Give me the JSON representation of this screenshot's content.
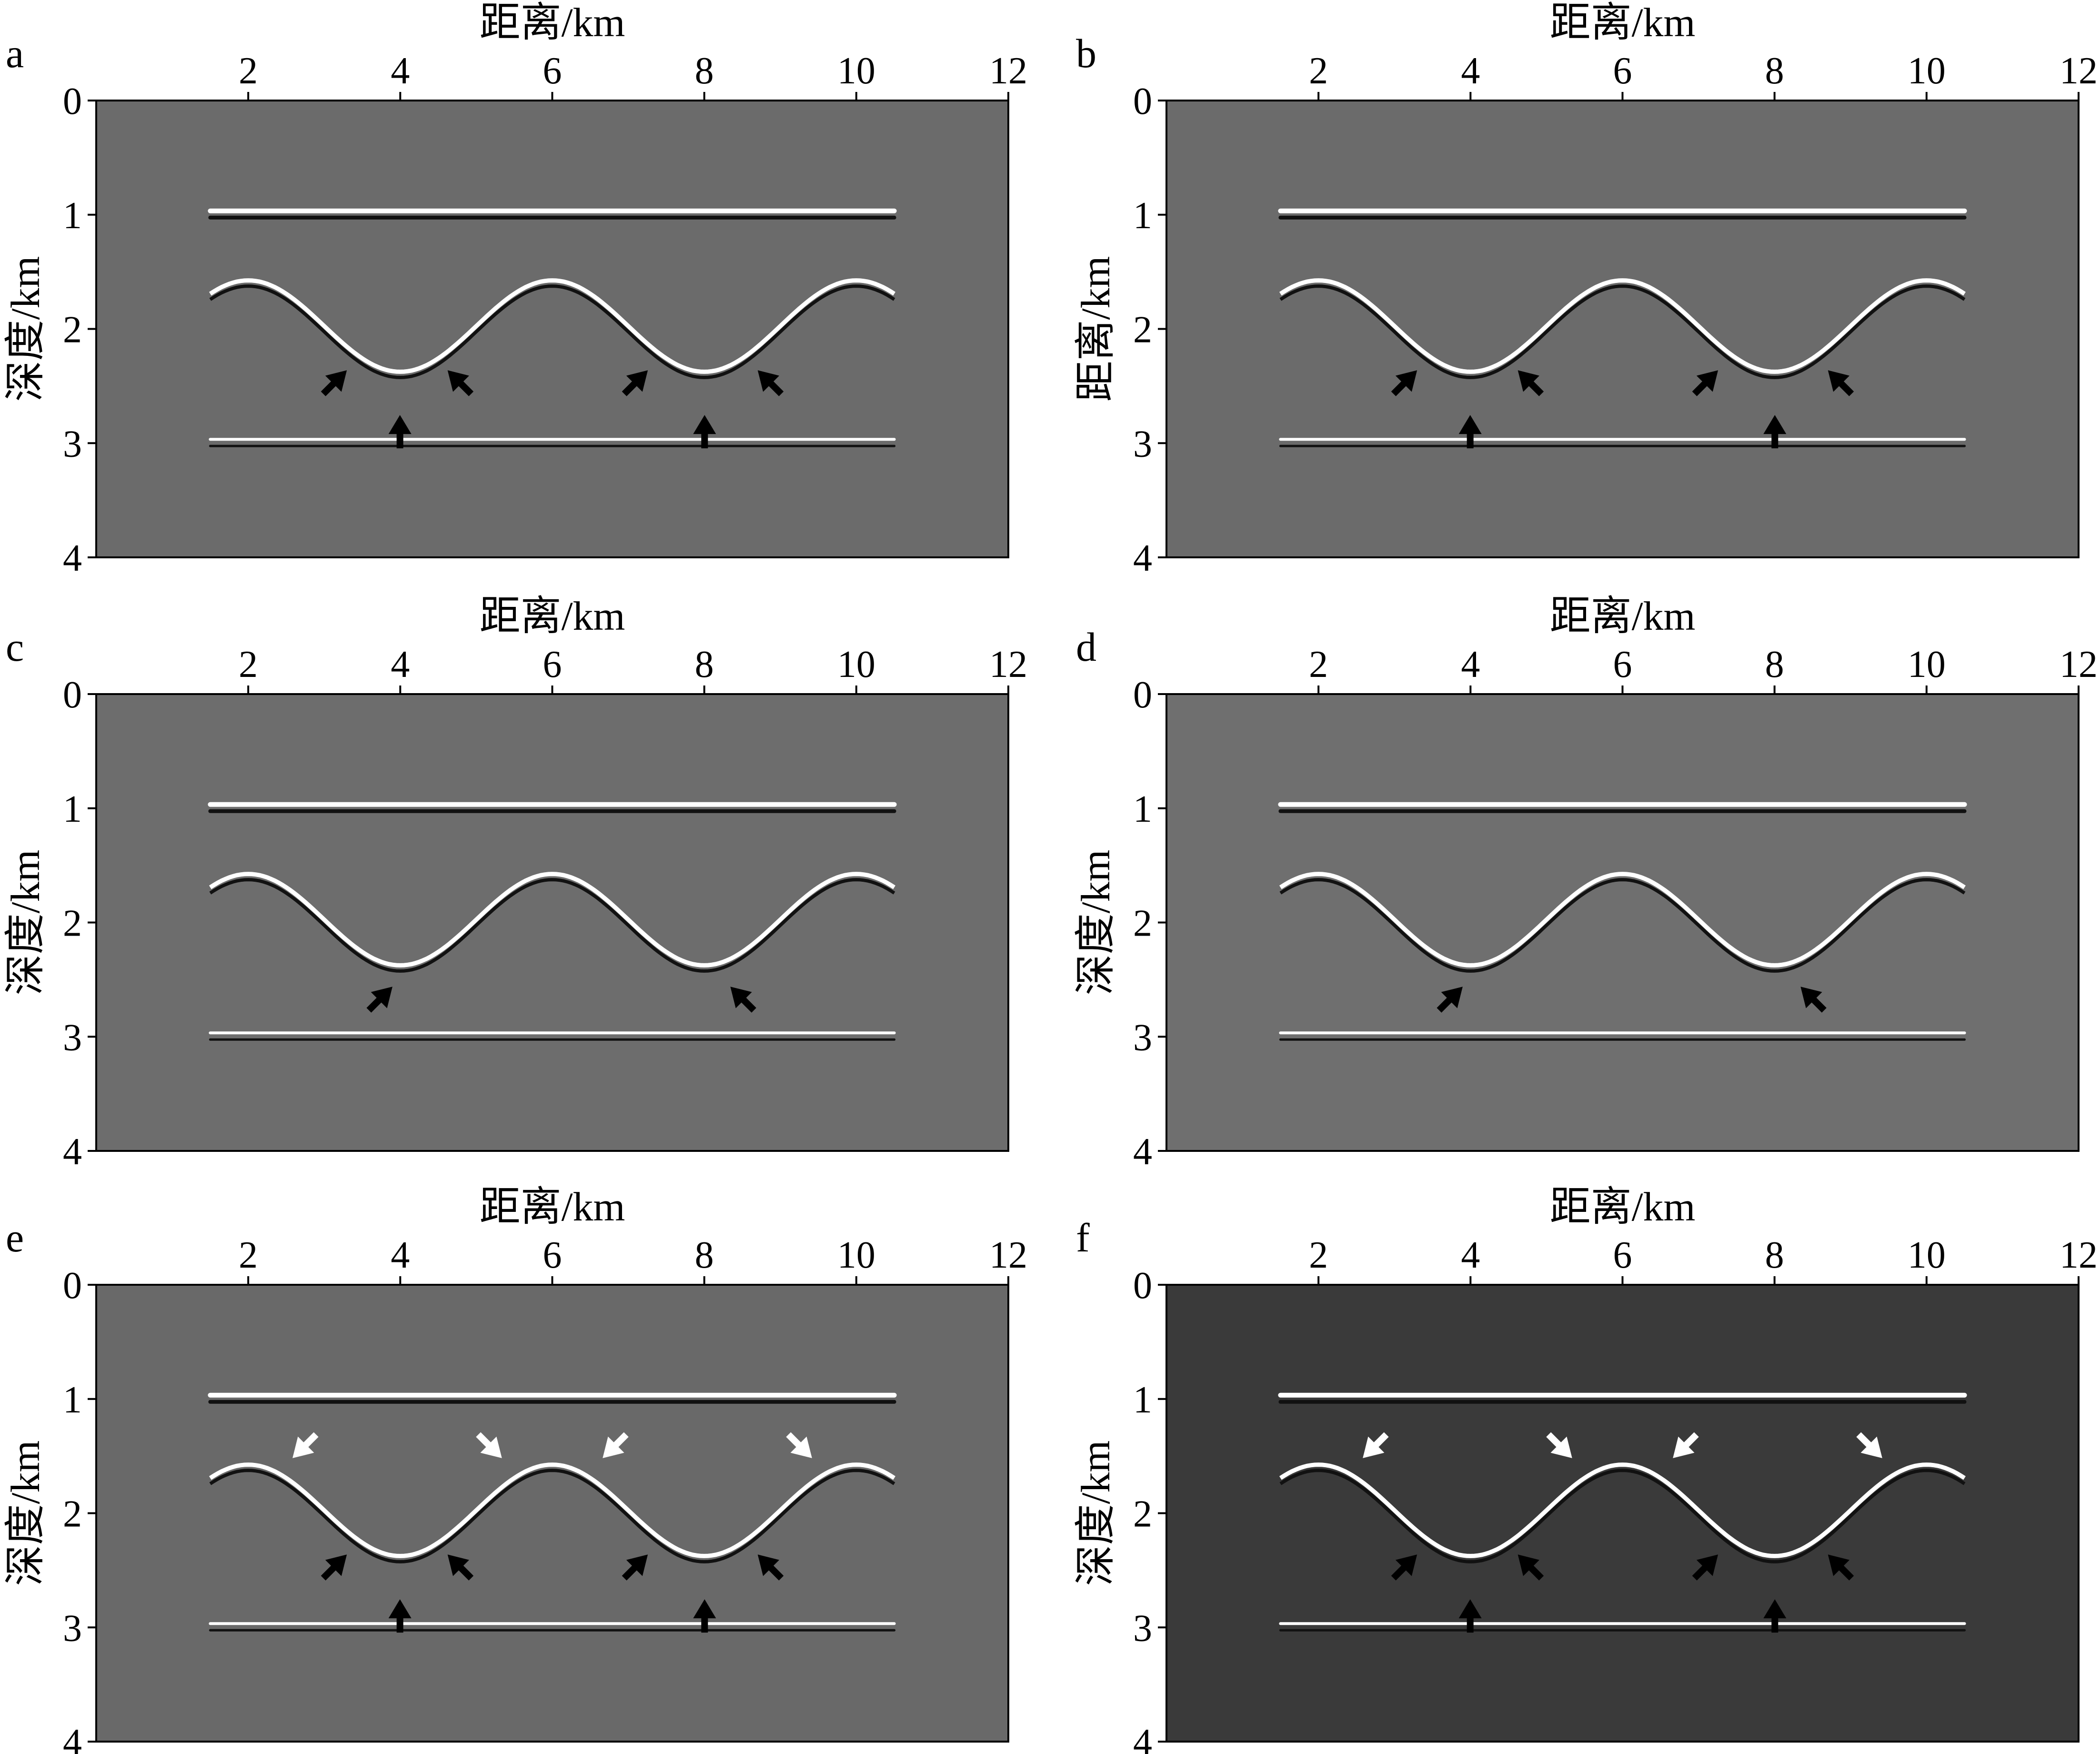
{
  "chart_data": [
    {
      "type": "image",
      "panel": "a",
      "xlabel": "距离/km",
      "ylabel": "深度/km",
      "xlim": [
        0,
        12
      ],
      "xticks": [
        2,
        4,
        6,
        8,
        10,
        12
      ],
      "ylim": [
        0,
        4
      ],
      "yticks": [
        0,
        1,
        2,
        3,
        4
      ],
      "color": "#6b6b6b"
    },
    {
      "type": "image",
      "panel": "b",
      "xlabel": "距离/km",
      "ylabel": "距离/km",
      "xlim": [
        0,
        12
      ],
      "xticks": [
        2,
        4,
        6,
        8,
        10,
        12
      ],
      "ylim": [
        0,
        4
      ],
      "yticks": [
        0,
        1,
        2,
        3,
        4
      ],
      "color": "#6b6b6b"
    },
    {
      "type": "image",
      "panel": "c",
      "xlabel": "距离/km",
      "ylabel": "深度/km",
      "xlim": [
        0,
        12
      ],
      "xticks": [
        2,
        4,
        6,
        8,
        10,
        12
      ],
      "ylim": [
        0,
        4
      ],
      "yticks": [
        0,
        1,
        2,
        3,
        4
      ],
      "color": "#6d6d6d"
    },
    {
      "type": "image",
      "panel": "d",
      "xlabel": "距离/km",
      "ylabel": "深度/km",
      "xlim": [
        0,
        12
      ],
      "xticks": [
        2,
        4,
        6,
        8,
        10,
        12
      ],
      "ylim": [
        0,
        4
      ],
      "yticks": [
        0,
        1,
        2,
        3,
        4
      ],
      "color": "#6f6f6f"
    },
    {
      "type": "image",
      "panel": "e",
      "xlabel": "距离/km",
      "ylabel": "深度/km",
      "xlim": [
        0,
        12
      ],
      "xticks": [
        2,
        4,
        6,
        8,
        10,
        12
      ],
      "ylim": [
        0,
        4
      ],
      "yticks": [
        0,
        1,
        2,
        3,
        4
      ],
      "color": "#696969"
    },
    {
      "type": "image",
      "panel": "f",
      "xlabel": "距离/km",
      "ylabel": "深度/km",
      "xlim": [
        0,
        12
      ],
      "xticks": [
        2,
        4,
        6,
        8,
        10,
        12
      ],
      "ylim": [
        0,
        4
      ],
      "yticks": [
        0,
        1,
        2,
        3,
        4
      ],
      "color": "#3a3a3a"
    }
  ]
}
